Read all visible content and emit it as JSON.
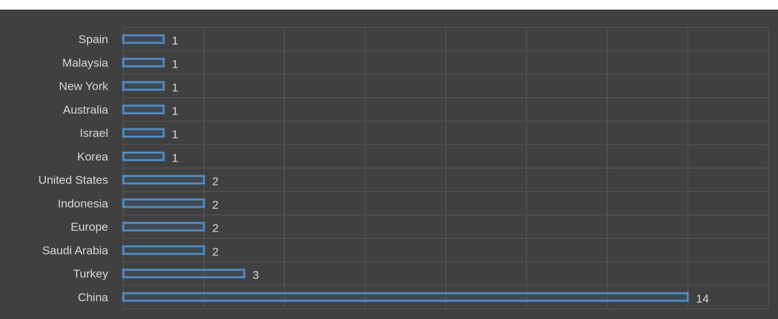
{
  "chart_data": {
    "type": "bar",
    "orientation": "horizontal",
    "categories": [
      "Spain",
      "Malaysia",
      "New York",
      "Australia",
      "Israel",
      "Korea",
      "United States",
      "Indonesia",
      "Europe",
      "Saudi Arabia",
      "Turkey",
      "China"
    ],
    "values": [
      1,
      1,
      1,
      1,
      1,
      1,
      2,
      2,
      2,
      2,
      3,
      14
    ],
    "data_labels": [
      "1",
      "1",
      "1",
      "1",
      "1",
      "1",
      "2",
      "2",
      "2",
      "2",
      "3",
      "14"
    ],
    "xlim": [
      0,
      16
    ],
    "grid": true,
    "legend": "none",
    "colors": {
      "background": "#404040",
      "bar_stroke": "#5b9bd5",
      "text": "#d9d9d9",
      "grid": "#5a5a5a"
    }
  }
}
